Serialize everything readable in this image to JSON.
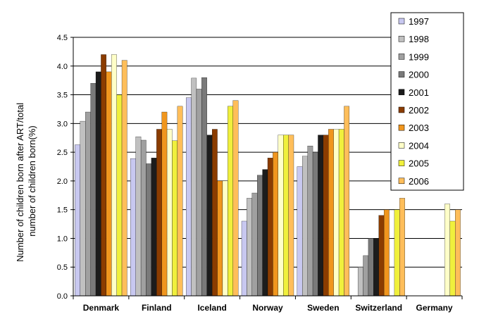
{
  "chart_data": {
    "type": "bar",
    "ylabel_lines": [
      "Number of children born after ART/total",
      "number of children born(%)"
    ],
    "ylim": [
      0,
      4.5
    ],
    "yticks": [
      "0.0",
      "0.5",
      "1.0",
      "1.5",
      "2.0",
      "2.5",
      "3.0",
      "3.5",
      "4.0",
      "4.5"
    ],
    "grid": true,
    "legend_position": "top-right",
    "categories": [
      "Denmark",
      "Finland",
      "Iceland",
      "Norway",
      "Sweden",
      "Switzerland",
      "Germany"
    ],
    "series": [
      {
        "name": "1997",
        "color": "#c8c8f0",
        "values": [
          2.63,
          2.39,
          3.45,
          1.3,
          2.25,
          null,
          null
        ]
      },
      {
        "name": "1998",
        "color": "#c0c0c0",
        "values": [
          3.04,
          2.77,
          3.79,
          1.7,
          2.43,
          0.5,
          null
        ]
      },
      {
        "name": "1999",
        "color": "#a0a0a0",
        "values": [
          3.2,
          2.71,
          3.6,
          1.79,
          2.61,
          0.7,
          null
        ]
      },
      {
        "name": "2000",
        "color": "#7a7a7a",
        "values": [
          3.7,
          2.3,
          3.8,
          2.1,
          2.5,
          1.0,
          null
        ]
      },
      {
        "name": "2001",
        "color": "#1c1c1c",
        "values": [
          3.9,
          2.4,
          2.8,
          2.2,
          2.8,
          1.0,
          null
        ]
      },
      {
        "name": "2002",
        "color": "#8b3c00",
        "values": [
          4.2,
          2.9,
          2.9,
          2.4,
          2.8,
          1.4,
          null
        ]
      },
      {
        "name": "2003",
        "color": "#f0961e",
        "values": [
          3.9,
          3.2,
          2.0,
          2.5,
          2.9,
          1.5,
          null
        ]
      },
      {
        "name": "2004",
        "color": "#ffffc8",
        "values": [
          4.2,
          2.9,
          2.0,
          2.8,
          2.9,
          null,
          1.6
        ]
      },
      {
        "name": "2005",
        "color": "#f0f03c",
        "values": [
          3.5,
          2.7,
          3.3,
          2.8,
          2.9,
          1.5,
          1.3
        ]
      },
      {
        "name": "2006",
        "color": "#ffbe5a",
        "values": [
          4.1,
          3.3,
          3.4,
          2.8,
          3.3,
          1.7,
          1.5
        ]
      }
    ]
  }
}
